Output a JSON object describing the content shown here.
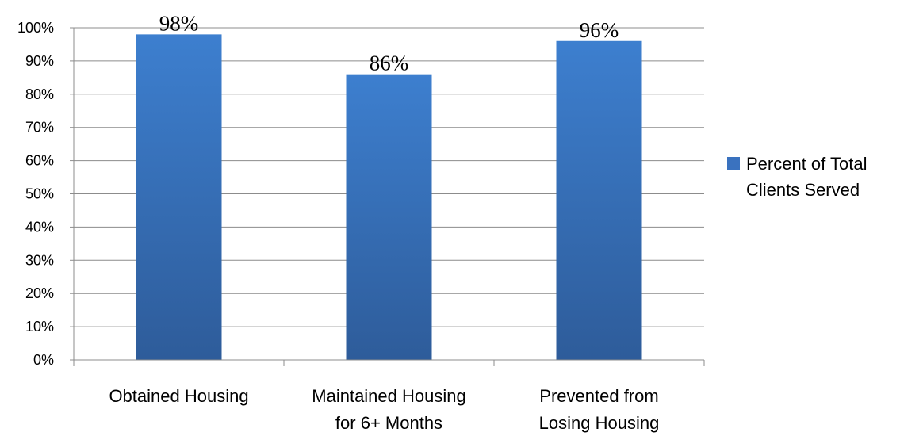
{
  "chart_data": {
    "type": "bar",
    "title": "",
    "xlabel": "",
    "ylabel": "",
    "categories": [
      [
        "Obtained Housing"
      ],
      [
        "Maintained Housing",
        "for 6+ Months"
      ],
      [
        "Prevented from",
        "Losing Housing"
      ]
    ],
    "series": [
      {
        "name": "Percent of Total Clients Served",
        "legend_lines": [
          "Percent of Total",
          "Clients Served"
        ],
        "values": [
          98,
          86,
          96
        ],
        "labels": [
          "98%",
          "86%",
          "96%"
        ],
        "color": "#3a72bf"
      }
    ],
    "ylim": [
      0,
      100
    ],
    "yticks": [
      0,
      10,
      20,
      30,
      40,
      50,
      60,
      70,
      80,
      90,
      100
    ],
    "ytick_labels": [
      "0%",
      "10%",
      "20%",
      "30%",
      "40%",
      "50%",
      "60%",
      "70%",
      "80%",
      "90%",
      "100%"
    ],
    "grid": true,
    "legend_position": "right"
  }
}
